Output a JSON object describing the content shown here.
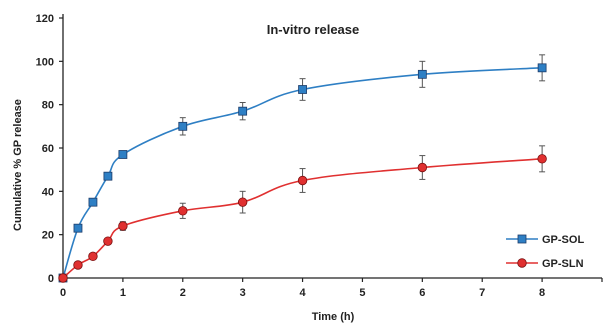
{
  "chart_data": {
    "type": "line",
    "title": "In-vitro release",
    "xlabel": "Time (h)",
    "ylabel": "Cumulative % GP release",
    "xlim": [
      0,
      9
    ],
    "ylim": [
      0,
      120
    ],
    "xticks": [
      0,
      1,
      2,
      3,
      4,
      5,
      6,
      7,
      8,
      9
    ],
    "xtick_labels": [
      "0",
      "1",
      "2",
      "3",
      "4",
      "5",
      "6",
      "7",
      "8",
      ""
    ],
    "yticks": [
      0,
      20,
      40,
      60,
      80,
      100,
      120
    ],
    "grid": false,
    "legend_position": "bottom-right",
    "series": [
      {
        "name": "GP-SOL",
        "color": "#2e7fc4",
        "marker": "square",
        "points": [
          {
            "x": 0,
            "y": 0,
            "err": 0
          },
          {
            "x": 0.25,
            "y": 23,
            "err": 1
          },
          {
            "x": 0.5,
            "y": 35,
            "err": 1
          },
          {
            "x": 0.75,
            "y": 47,
            "err": 1.5
          },
          {
            "x": 1,
            "y": 57,
            "err": 1.5
          },
          {
            "x": 2,
            "y": 70,
            "err": 4
          },
          {
            "x": 3,
            "y": 77,
            "err": 4
          },
          {
            "x": 4,
            "y": 87,
            "err": 5
          },
          {
            "x": 6,
            "y": 94,
            "err": 6
          },
          {
            "x": 8,
            "y": 97,
            "err": 6
          }
        ]
      },
      {
        "name": "GP-SLN",
        "color": "#e03030",
        "marker": "circle",
        "points": [
          {
            "x": 0,
            "y": 0,
            "err": 0
          },
          {
            "x": 0.25,
            "y": 6,
            "err": 0.5
          },
          {
            "x": 0.5,
            "y": 10,
            "err": 1
          },
          {
            "x": 0.75,
            "y": 17,
            "err": 1
          },
          {
            "x": 1,
            "y": 24,
            "err": 2
          },
          {
            "x": 2,
            "y": 31,
            "err": 3.5
          },
          {
            "x": 3,
            "y": 35,
            "err": 5
          },
          {
            "x": 4,
            "y": 45,
            "err": 5.5
          },
          {
            "x": 6,
            "y": 51,
            "err": 5.5
          },
          {
            "x": 8,
            "y": 55,
            "err": 6
          }
        ]
      }
    ]
  }
}
